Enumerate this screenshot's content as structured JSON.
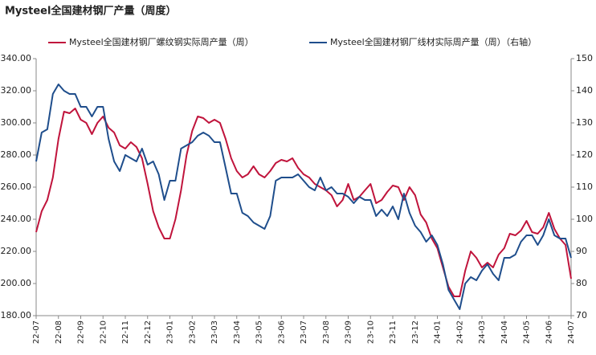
{
  "chart_data": {
    "type": "line",
    "title": "Mysteel全国建材钢厂产量（周度）",
    "categories": [
      "22-07",
      null,
      null,
      null,
      "22-08",
      null,
      null,
      null,
      "22-09",
      null,
      null,
      null,
      "22-10",
      null,
      null,
      null,
      "22-11",
      null,
      null,
      null,
      "22-12",
      null,
      null,
      null,
      "23-01",
      null,
      null,
      null,
      "23-02",
      null,
      null,
      null,
      "23-03",
      null,
      null,
      null,
      "23-04",
      null,
      null,
      null,
      "23-05",
      null,
      null,
      null,
      "23-06",
      null,
      null,
      null,
      "23-07",
      null,
      null,
      null,
      "23-08",
      null,
      null,
      null,
      "23-09",
      null,
      null,
      null,
      "23-10",
      null,
      null,
      null,
      "23-11",
      null,
      null,
      null,
      "23-12",
      null,
      null,
      null,
      "24-01",
      null,
      null,
      null,
      "24-02",
      null,
      null,
      null,
      "24-03",
      null,
      null,
      null,
      "24-04",
      null,
      null,
      null,
      "24-05",
      null,
      null,
      null,
      "24-06",
      null,
      null,
      null,
      "24-07"
    ],
    "series": [
      {
        "name": "Mysteel全国建材钢厂螺纹钢实际周产量（周）",
        "color": "#c0143c",
        "axis": "y",
        "values": [
          232,
          245,
          252,
          266,
          290,
          307,
          306,
          309,
          302,
          300,
          293,
          300,
          304,
          297,
          294,
          286,
          284,
          288,
          285,
          278,
          262,
          245,
          235,
          228,
          228,
          240,
          258,
          280,
          295,
          304,
          303,
          300,
          302,
          300,
          290,
          278,
          270,
          266,
          268,
          273,
          268,
          266,
          270,
          275,
          277,
          276,
          278,
          272,
          268,
          266,
          262,
          260,
          258,
          255,
          248,
          252,
          262,
          252,
          254,
          258,
          262,
          250,
          252,
          257,
          261,
          260,
          252,
          260,
          255,
          243,
          238,
          228,
          222,
          210,
          198,
          192,
          192,
          208,
          220,
          216,
          210,
          213,
          210,
          218,
          222,
          231,
          230,
          233,
          239,
          232,
          231,
          235,
          244,
          234,
          228,
          224,
          203
        ]
      },
      {
        "name": "Mysteel全国建材钢厂线材实际周产量（周）（右轴）",
        "color": "#1f4e8c",
        "axis": "y2",
        "values": [
          118,
          127,
          128,
          139,
          142,
          140,
          139,
          139,
          135,
          135,
          132,
          135,
          135,
          125,
          118,
          115,
          120,
          119,
          118,
          122,
          117,
          118,
          114,
          106,
          112,
          112,
          122,
          123,
          124,
          126,
          127,
          126,
          124,
          124,
          116,
          108,
          108,
          102,
          101,
          99,
          98,
          97,
          101,
          112,
          113,
          113,
          113,
          114,
          112,
          110,
          109,
          113,
          109,
          110,
          108,
          108,
          107,
          105,
          107,
          106,
          106,
          101,
          103,
          101,
          104,
          100,
          108,
          102,
          98,
          96,
          93,
          95,
          92,
          86,
          78,
          75,
          72,
          80,
          82,
          81,
          84,
          86,
          83,
          81,
          88,
          88,
          89,
          93,
          95,
          95,
          92,
          95,
          100,
          95,
          94,
          94,
          88
        ]
      }
    ],
    "ylim": [
      180,
      340
    ],
    "yticks": [
      {
        "value": 180,
        "label": "180.00"
      },
      {
        "value": 200,
        "label": "200.00"
      },
      {
        "value": 220,
        "label": "220.00"
      },
      {
        "value": 240,
        "label": "240.00"
      },
      {
        "value": 260,
        "label": "260.00"
      },
      {
        "value": 280,
        "label": "280.00"
      },
      {
        "value": 300,
        "label": "300.00"
      },
      {
        "value": 320,
        "label": "320.00"
      },
      {
        "value": 340,
        "label": "340.00"
      }
    ],
    "y2lim": [
      70,
      150
    ],
    "y2ticks": [
      70,
      80,
      90,
      100,
      110,
      120,
      130,
      140,
      150
    ],
    "grid": false
  }
}
